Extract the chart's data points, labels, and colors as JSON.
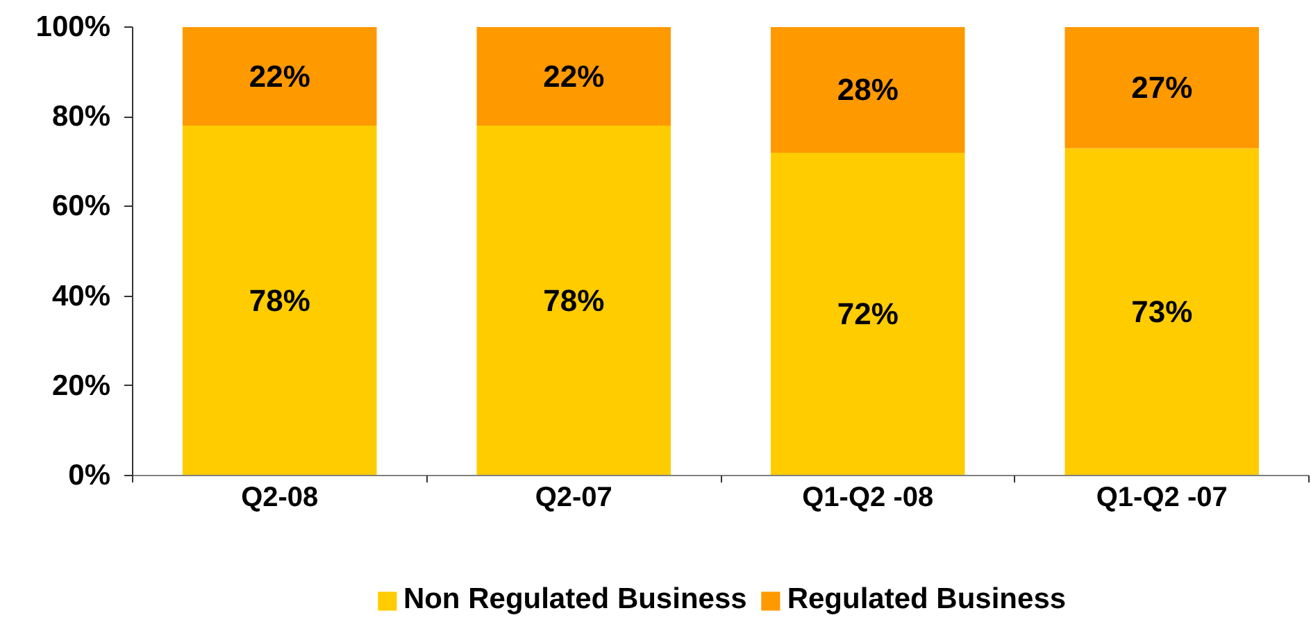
{
  "chart_data": {
    "type": "bar",
    "stacked": true,
    "categories": [
      "Q2-08",
      "Q2-07",
      "Q1-Q2 -08",
      "Q1-Q2 -07"
    ],
    "series": [
      {
        "name": "Non Regulated Business",
        "color": "#ffcc00",
        "values": [
          78,
          78,
          72,
          73
        ],
        "value_labels": [
          "78%",
          "78%",
          "72%",
          "73%"
        ]
      },
      {
        "name": "Regulated Business",
        "color": "#ff9900",
        "values": [
          22,
          22,
          28,
          27
        ],
        "value_labels": [
          "22%",
          "22%",
          "28%",
          "27%"
        ]
      }
    ],
    "ylim": [
      0,
      100
    ],
    "yticks": [
      {
        "value": 0,
        "label": "0%"
      },
      {
        "value": 20,
        "label": "20%"
      },
      {
        "value": 40,
        "label": "40%"
      },
      {
        "value": 60,
        "label": "60%"
      },
      {
        "value": 80,
        "label": "80%"
      },
      {
        "value": 100,
        "label": "100%"
      }
    ],
    "legend": "bottom"
  }
}
